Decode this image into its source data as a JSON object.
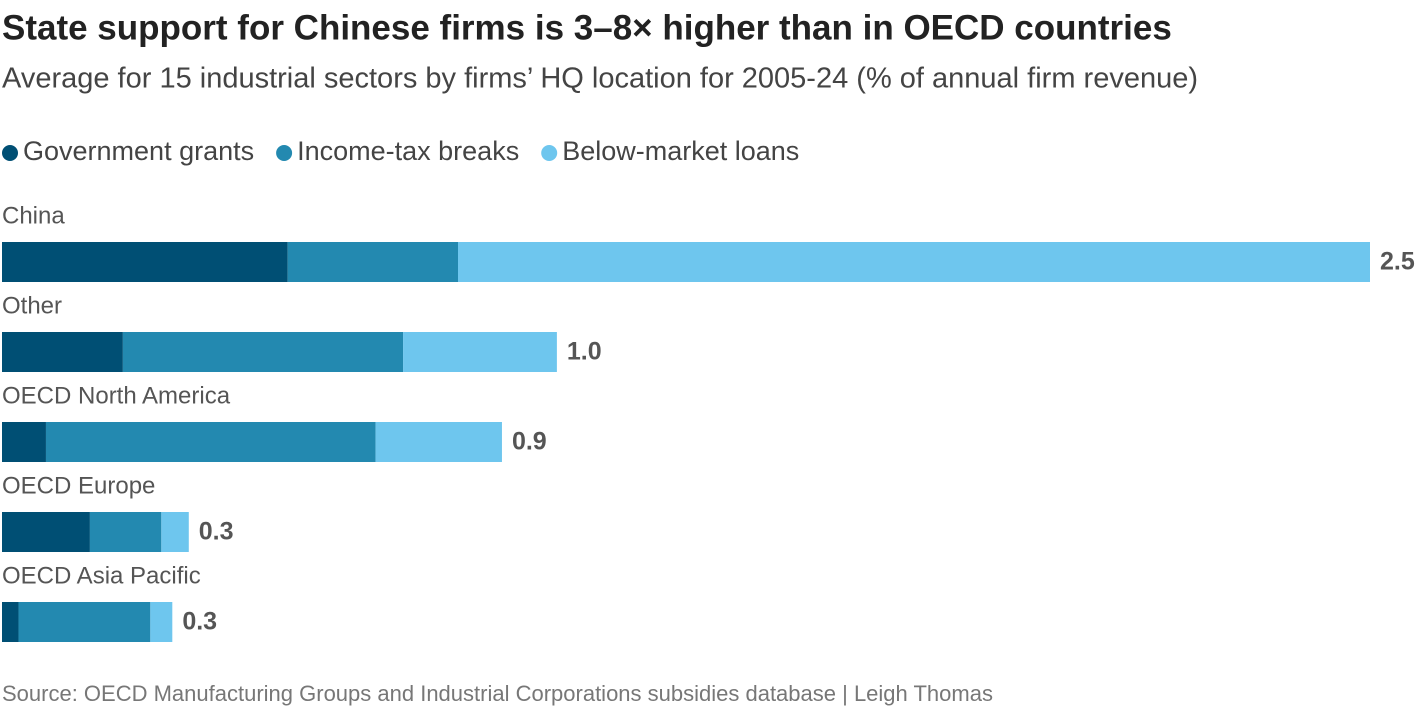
{
  "chart_data": {
    "type": "stacked-bar-horizontal",
    "title": "State support for Chinese firms is 3–8× higher than in OECD countries",
    "subtitle": "Average for 15 industrial sectors by firms’ HQ location for 2005-24 (% of annual firm revenue)",
    "categories": [
      "China",
      "Other",
      "OECD North America",
      "OECD Europe",
      "OECD Asia Pacific"
    ],
    "series": [
      {
        "name": "Government grants",
        "color": "#004f74",
        "values": [
          0.52,
          0.22,
          0.08,
          0.16,
          0.03
        ]
      },
      {
        "name": "Income-tax breaks",
        "color": "#2389b0",
        "values": [
          0.31,
          0.51,
          0.6,
          0.13,
          0.24
        ]
      },
      {
        "name": "Below-market loans",
        "color": "#6ec6ee",
        "values": [
          1.66,
          0.28,
          0.23,
          0.05,
          0.04
        ]
      }
    ],
    "total_labels": [
      "2.5",
      "1.0",
      "0.9",
      "0.3",
      "0.3"
    ],
    "source": "Source: OECD Manufacturing Groups and Industrial Corporations subsidies database  | Leigh Thomas"
  }
}
